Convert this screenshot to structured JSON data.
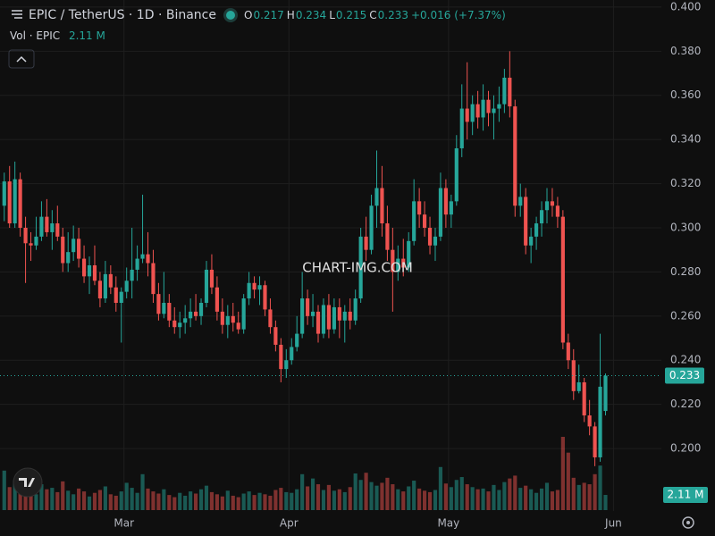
{
  "chart_data": {
    "type": "candlestick",
    "title": "EPIC / TetherUS · 1D · Binance",
    "ohlc_labels": [
      "O",
      "H",
      "L",
      "C"
    ],
    "ohlc_values": [
      0.217,
      0.234,
      0.215,
      0.233
    ],
    "change": "+0.016 (+7.37%)",
    "volume_title": "Vol · EPIC",
    "volume_value_label": "2.11 M",
    "watermark": "CHART-IMG.COM",
    "last_price": 0.233,
    "up_color": "#26a69a",
    "down_color": "#ef5350",
    "grid": true,
    "xlim": [
      -0.8,
      123.5
    ],
    "xticks": [
      {
        "value": 22.5,
        "label": "Mar"
      },
      {
        "value": 53.5,
        "label": "Apr"
      },
      {
        "value": 83.5,
        "label": "May"
      },
      {
        "value": 114.5,
        "label": "Jun"
      }
    ],
    "ylim": [
      0.1717,
      0.4032
    ],
    "yticks": [
      {
        "value": 0.2,
        "label": "0.200"
      },
      {
        "value": 0.22,
        "label": "0.220"
      },
      {
        "value": 0.24,
        "label": "0.240"
      },
      {
        "value": 0.26,
        "label": "0.260"
      },
      {
        "value": 0.28,
        "label": "0.280"
      },
      {
        "value": 0.3,
        "label": "0.300"
      },
      {
        "value": 0.32,
        "label": "0.320"
      },
      {
        "value": 0.34,
        "label": "0.340"
      },
      {
        "value": 0.36,
        "label": "0.360"
      },
      {
        "value": 0.38,
        "label": "0.380"
      },
      {
        "value": 0.4,
        "label": "0.400"
      }
    ],
    "ohlc": [
      [
        0.31,
        0.325,
        0.303,
        0.321
      ],
      [
        0.321,
        0.328,
        0.3,
        0.302
      ],
      [
        0.302,
        0.33,
        0.3,
        0.322
      ],
      [
        0.322,
        0.325,
        0.296,
        0.3
      ],
      [
        0.3,
        0.305,
        0.275,
        0.293
      ],
      [
        0.293,
        0.298,
        0.285,
        0.292
      ],
      [
        0.292,
        0.305,
        0.29,
        0.296
      ],
      [
        0.296,
        0.312,
        0.294,
        0.305
      ],
      [
        0.305,
        0.313,
        0.296,
        0.298
      ],
      [
        0.298,
        0.308,
        0.29,
        0.302
      ],
      [
        0.302,
        0.31,
        0.294,
        0.296
      ],
      [
        0.296,
        0.3,
        0.28,
        0.284
      ],
      [
        0.284,
        0.298,
        0.28,
        0.289
      ],
      [
        0.289,
        0.301,
        0.285,
        0.295
      ],
      [
        0.295,
        0.3,
        0.282,
        0.286
      ],
      [
        0.286,
        0.292,
        0.275,
        0.278
      ],
      [
        0.278,
        0.287,
        0.27,
        0.283
      ],
      [
        0.283,
        0.292,
        0.274,
        0.276
      ],
      [
        0.276,
        0.28,
        0.264,
        0.268
      ],
      [
        0.268,
        0.285,
        0.266,
        0.279
      ],
      [
        0.279,
        0.283,
        0.27,
        0.273
      ],
      [
        0.273,
        0.278,
        0.262,
        0.266
      ],
      [
        0.266,
        0.273,
        0.248,
        0.271
      ],
      [
        0.271,
        0.282,
        0.268,
        0.276
      ],
      [
        0.276,
        0.3,
        0.268,
        0.281
      ],
      [
        0.281,
        0.292,
        0.276,
        0.286
      ],
      [
        0.286,
        0.315,
        0.284,
        0.288
      ],
      [
        0.288,
        0.298,
        0.278,
        0.284
      ],
      [
        0.284,
        0.29,
        0.266,
        0.27
      ],
      [
        0.27,
        0.275,
        0.258,
        0.261
      ],
      [
        0.261,
        0.28,
        0.259,
        0.266
      ],
      [
        0.266,
        0.27,
        0.255,
        0.258
      ],
      [
        0.258,
        0.264,
        0.252,
        0.255
      ],
      [
        0.255,
        0.262,
        0.25,
        0.257
      ],
      [
        0.257,
        0.265,
        0.252,
        0.259
      ],
      [
        0.259,
        0.268,
        0.255,
        0.262
      ],
      [
        0.262,
        0.27,
        0.258,
        0.26
      ],
      [
        0.26,
        0.268,
        0.256,
        0.266
      ],
      [
        0.266,
        0.285,
        0.264,
        0.281
      ],
      [
        0.281,
        0.288,
        0.27,
        0.273
      ],
      [
        0.273,
        0.278,
        0.258,
        0.262
      ],
      [
        0.262,
        0.268,
        0.252,
        0.256
      ],
      [
        0.256,
        0.265,
        0.25,
        0.26
      ],
      [
        0.26,
        0.266,
        0.253,
        0.257
      ],
      [
        0.257,
        0.262,
        0.252,
        0.254
      ],
      [
        0.254,
        0.27,
        0.252,
        0.268
      ],
      [
        0.268,
        0.28,
        0.265,
        0.275
      ],
      [
        0.275,
        0.278,
        0.268,
        0.272
      ],
      [
        0.272,
        0.278,
        0.265,
        0.274
      ],
      [
        0.274,
        0.276,
        0.26,
        0.263
      ],
      [
        0.263,
        0.268,
        0.252,
        0.255
      ],
      [
        0.255,
        0.258,
        0.244,
        0.247
      ],
      [
        0.247,
        0.25,
        0.23,
        0.236
      ],
      [
        0.236,
        0.245,
        0.232,
        0.24
      ],
      [
        0.24,
        0.25,
        0.238,
        0.246
      ],
      [
        0.246,
        0.26,
        0.244,
        0.252
      ],
      [
        0.252,
        0.28,
        0.25,
        0.268
      ],
      [
        0.268,
        0.272,
        0.256,
        0.26
      ],
      [
        0.26,
        0.27,
        0.255,
        0.262
      ],
      [
        0.262,
        0.265,
        0.248,
        0.252
      ],
      [
        0.252,
        0.268,
        0.25,
        0.265
      ],
      [
        0.265,
        0.27,
        0.25,
        0.254
      ],
      [
        0.254,
        0.268,
        0.252,
        0.264
      ],
      [
        0.264,
        0.268,
        0.25,
        0.258
      ],
      [
        0.258,
        0.265,
        0.248,
        0.262
      ],
      [
        0.262,
        0.268,
        0.254,
        0.258
      ],
      [
        0.258,
        0.272,
        0.256,
        0.268
      ],
      [
        0.268,
        0.3,
        0.266,
        0.296
      ],
      [
        0.296,
        0.305,
        0.285,
        0.29
      ],
      [
        0.29,
        0.315,
        0.288,
        0.31
      ],
      [
        0.31,
        0.335,
        0.3,
        0.318
      ],
      [
        0.318,
        0.328,
        0.296,
        0.302
      ],
      [
        0.302,
        0.31,
        0.285,
        0.29
      ],
      [
        0.29,
        0.3,
        0.262,
        0.28
      ],
      [
        0.28,
        0.292,
        0.276,
        0.286
      ],
      [
        0.286,
        0.295,
        0.278,
        0.282
      ],
      [
        0.282,
        0.298,
        0.28,
        0.294
      ],
      [
        0.294,
        0.322,
        0.292,
        0.312
      ],
      [
        0.312,
        0.318,
        0.3,
        0.306
      ],
      [
        0.306,
        0.312,
        0.296,
        0.3
      ],
      [
        0.3,
        0.305,
        0.288,
        0.292
      ],
      [
        0.292,
        0.3,
        0.285,
        0.296
      ],
      [
        0.296,
        0.325,
        0.294,
        0.318
      ],
      [
        0.318,
        0.322,
        0.3,
        0.306
      ],
      [
        0.306,
        0.315,
        0.3,
        0.312
      ],
      [
        0.312,
        0.342,
        0.31,
        0.336
      ],
      [
        0.336,
        0.365,
        0.332,
        0.354
      ],
      [
        0.354,
        0.375,
        0.34,
        0.348
      ],
      [
        0.348,
        0.36,
        0.342,
        0.356
      ],
      [
        0.356,
        0.362,
        0.345,
        0.35
      ],
      [
        0.35,
        0.365,
        0.344,
        0.358
      ],
      [
        0.358,
        0.362,
        0.346,
        0.352
      ],
      [
        0.352,
        0.36,
        0.34,
        0.354
      ],
      [
        0.354,
        0.364,
        0.348,
        0.356
      ],
      [
        0.356,
        0.372,
        0.352,
        0.368
      ],
      [
        0.368,
        0.38,
        0.35,
        0.355
      ],
      [
        0.355,
        0.358,
        0.305,
        0.31
      ],
      [
        0.31,
        0.32,
        0.305,
        0.314
      ],
      [
        0.314,
        0.318,
        0.288,
        0.292
      ],
      [
        0.292,
        0.3,
        0.284,
        0.296
      ],
      [
        0.296,
        0.305,
        0.29,
        0.302
      ],
      [
        0.302,
        0.312,
        0.296,
        0.308
      ],
      [
        0.308,
        0.318,
        0.302,
        0.312
      ],
      [
        0.312,
        0.318,
        0.305,
        0.31
      ],
      [
        0.31,
        0.314,
        0.3,
        0.305
      ],
      [
        0.305,
        0.308,
        0.245,
        0.248
      ],
      [
        0.248,
        0.252,
        0.236,
        0.24
      ],
      [
        0.24,
        0.245,
        0.222,
        0.226
      ],
      [
        0.226,
        0.238,
        0.225,
        0.23
      ],
      [
        0.23,
        0.232,
        0.212,
        0.215
      ],
      [
        0.215,
        0.222,
        0.206,
        0.21
      ],
      [
        0.21,
        0.212,
        0.192,
        0.196
      ],
      [
        0.196,
        0.252,
        0.194,
        0.228
      ],
      [
        0.217,
        0.234,
        0.215,
        0.233
      ]
    ],
    "volumes": [
      5.5,
      3.2,
      4.1,
      2.8,
      3.5,
      2.4,
      2.2,
      3.6,
      2.9,
      3.1,
      2.5,
      4.0,
      2.7,
      2.2,
      3.0,
      2.6,
      1.9,
      2.4,
      2.8,
      3.3,
      2.2,
      2.0,
      2.6,
      3.8,
      3.1,
      2.4,
      5.0,
      3.0,
      2.6,
      2.3,
      2.9,
      2.1,
      1.8,
      2.4,
      2.0,
      2.6,
      2.3,
      2.9,
      3.4,
      2.5,
      2.2,
      1.9,
      2.7,
      2.0,
      1.8,
      2.3,
      2.6,
      2.1,
      2.4,
      2.2,
      2.0,
      2.8,
      3.1,
      2.5,
      2.4,
      2.9,
      5.0,
      3.3,
      4.4,
      3.6,
      2.8,
      3.5,
      2.7,
      2.9,
      2.5,
      3.2,
      5.1,
      4.2,
      5.2,
      3.9,
      3.4,
      3.8,
      4.5,
      3.6,
      2.9,
      2.6,
      3.3,
      4.1,
      3.0,
      2.7,
      2.5,
      2.8,
      6.0,
      3.7,
      3.2,
      4.2,
      4.6,
      3.6,
      3.2,
      2.9,
      3.0,
      2.6,
      3.5,
      2.8,
      3.9,
      4.4,
      4.8,
      3.1,
      3.4,
      2.9,
      2.4,
      3.0,
      3.8,
      2.6,
      2.8,
      10.2,
      8.0,
      4.5,
      3.5,
      3.8,
      3.6,
      5.0,
      6.2,
      2.11
    ]
  }
}
